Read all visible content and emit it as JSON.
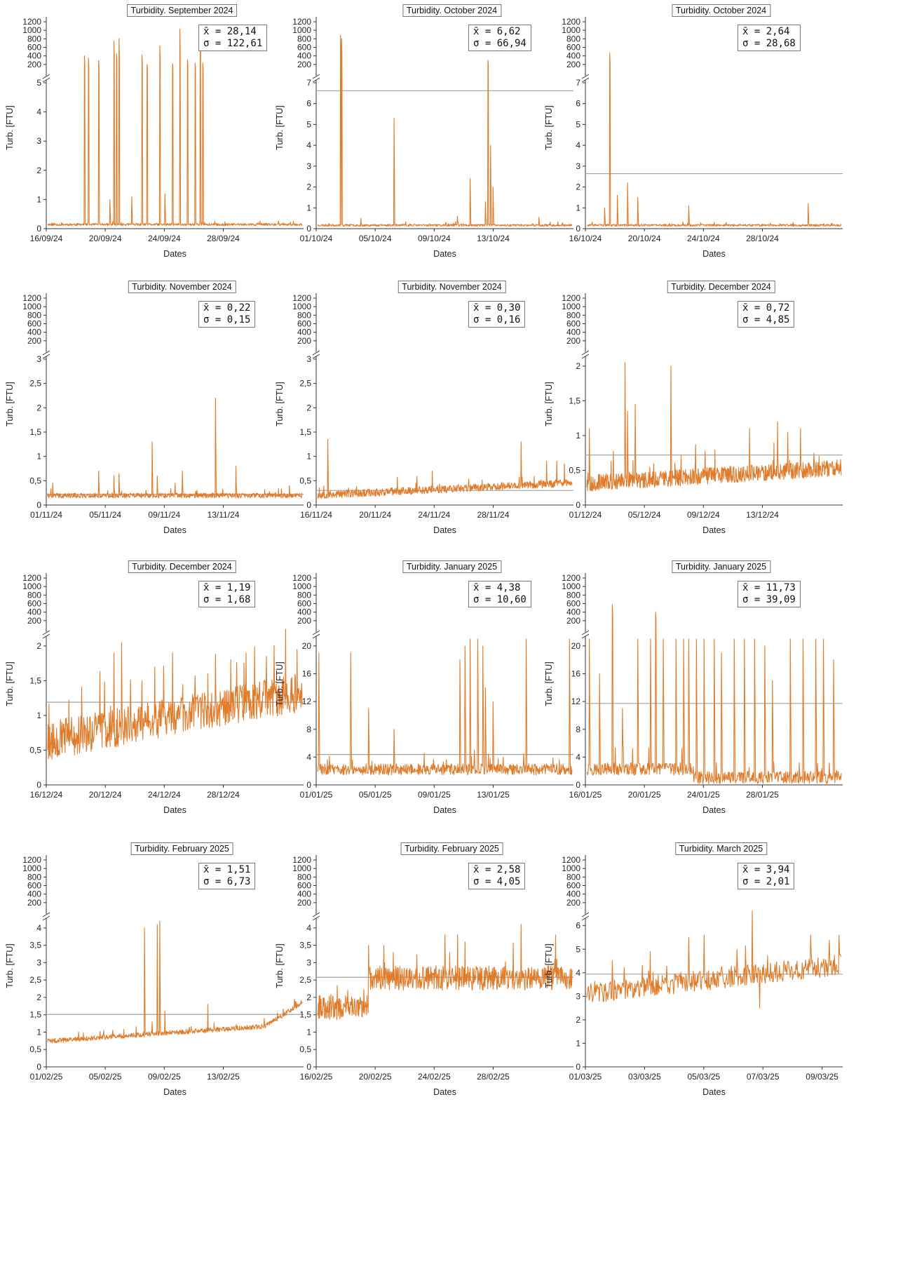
{
  "style": {
    "series_color": "#e07b2a",
    "mean_color": "#a0a0a0",
    "axis_color": "#333333"
  },
  "chart_data": [
    {
      "type": "line",
      "title": "Turbidity. September 2024",
      "xlabel": "Dates",
      "ylabel": "Turb. [FTU]",
      "x_ticks": [
        "16/09/24",
        "20/09/24",
        "24/09/24",
        "28/09/24"
      ],
      "upper_ticks": [
        "1200",
        "1000",
        "800",
        "600",
        "400",
        "200"
      ],
      "lower_ticks": [
        "0",
        "1",
        "2",
        "3",
        "4",
        "5"
      ],
      "ylim_upper": [
        0,
        1250
      ],
      "ylim_lower": [
        0,
        5
      ],
      "stats": {
        "mean_label": "x̄ = 28,14",
        "sd_label": "σ = 122,61"
      },
      "mean": 28.14,
      "mean_visible": false,
      "series": {
        "baseline": 0.13,
        "noise": 0.04,
        "n": 700,
        "seed": 11,
        "spikes": [
          [
            0.145,
            400
          ],
          [
            0.16,
            350
          ],
          [
            0.2,
            290
          ],
          [
            0.245,
            1.0
          ],
          [
            0.26,
            750
          ],
          [
            0.27,
            460
          ],
          [
            0.28,
            810
          ],
          [
            0.33,
            1.1
          ],
          [
            0.37,
            420
          ],
          [
            0.39,
            200
          ],
          [
            0.44,
            640
          ],
          [
            0.46,
            1.2
          ],
          [
            0.49,
            220
          ],
          [
            0.52,
            1030
          ],
          [
            0.55,
            310
          ],
          [
            0.58,
            230
          ],
          [
            0.6,
            1050
          ],
          [
            0.61,
            230
          ]
        ]
      }
    },
    {
      "type": "line",
      "title": "Turbidity. October 2024",
      "xlabel": "Dates",
      "ylabel": "Turb. [FTU]",
      "x_ticks": [
        "01/10/24",
        "05/10/24",
        "09/10/24",
        "13/10/24"
      ],
      "upper_ticks": [
        "1200",
        "1000",
        "800",
        "600",
        "400",
        "200"
      ],
      "lower_ticks": [
        "0",
        "1",
        "2",
        "3",
        "4",
        "5",
        "6",
        "7"
      ],
      "ylim_upper": [
        0,
        1250
      ],
      "ylim_lower": [
        0,
        7
      ],
      "stats": {
        "mean_label": "x̄ = 6,62",
        "sd_label": "σ = 66,94"
      },
      "mean": 6.62,
      "mean_visible": true,
      "series": {
        "baseline": 0.15,
        "noise": 0.05,
        "n": 700,
        "seed": 23,
        "spikes": [
          [
            0.09,
            880
          ],
          [
            0.095,
            800
          ],
          [
            0.17,
            0.5
          ],
          [
            0.3,
            5.3
          ],
          [
            0.55,
            0.6
          ],
          [
            0.6,
            2.4
          ],
          [
            0.66,
            1.3
          ],
          [
            0.67,
            300
          ],
          [
            0.68,
            4.0
          ],
          [
            0.69,
            2.0
          ],
          [
            0.87,
            0.55
          ]
        ]
      }
    },
    {
      "type": "line",
      "title": "Turbidity. October 2024",
      "xlabel": "Dates",
      "ylabel": "Turb. [FTU]",
      "x_ticks": [
        "16/10/24",
        "20/10/24",
        "24/10/24",
        "28/10/24"
      ],
      "upper_ticks": [
        "1200",
        "1000",
        "800",
        "600",
        "400",
        "200"
      ],
      "lower_ticks": [
        "0",
        "1",
        "2",
        "3",
        "4",
        "5",
        "6",
        "7"
      ],
      "ylim_upper": [
        0,
        1250
      ],
      "ylim_lower": [
        0,
        7
      ],
      "stats": {
        "mean_label": "x̄ = 2,64",
        "sd_label": "σ = 28,68"
      },
      "mean": 2.64,
      "mean_visible": true,
      "series": {
        "baseline": 0.15,
        "noise": 0.05,
        "n": 700,
        "seed": 37,
        "spikes": [
          [
            0.07,
            1.0
          ],
          [
            0.09,
            470
          ],
          [
            0.12,
            1.6
          ],
          [
            0.16,
            2.2
          ],
          [
            0.2,
            1.5
          ],
          [
            0.4,
            1.1
          ],
          [
            0.5,
            0.3
          ],
          [
            0.87,
            1.2
          ]
        ]
      }
    },
    {
      "type": "line",
      "title": "Turbidity. November 2024",
      "xlabel": "Dates",
      "ylabel": "Turb. [FTU]",
      "x_ticks": [
        "01/11/24",
        "05/11/24",
        "09/11/24",
        "13/11/24"
      ],
      "upper_ticks": [
        "1200",
        "1000",
        "800",
        "600",
        "400",
        "200"
      ],
      "lower_ticks": [
        "0",
        "0,5",
        "1",
        "1,5",
        "2",
        "2,5",
        "3"
      ],
      "ylim_upper": [
        0,
        1250
      ],
      "ylim_lower": [
        0,
        3
      ],
      "stats": {
        "mean_label": "x̄ = 0,22",
        "sd_label": "σ = 0,15"
      },
      "mean": 0.22,
      "mean_visible": true,
      "series": {
        "baseline": 0.18,
        "noise": 0.05,
        "n": 700,
        "seed": 41,
        "spikes": [
          [
            0.02,
            0.45
          ],
          [
            0.2,
            0.7
          ],
          [
            0.26,
            0.6
          ],
          [
            0.28,
            0.65
          ],
          [
            0.41,
            1.3
          ],
          [
            0.43,
            0.6
          ],
          [
            0.5,
            0.45
          ],
          [
            0.53,
            0.7
          ],
          [
            0.66,
            2.2
          ],
          [
            0.74,
            0.8
          ],
          [
            0.95,
            0.4
          ]
        ]
      }
    },
    {
      "type": "line",
      "title": "Turbidity. November 2024",
      "xlabel": "Dates",
      "ylabel": "Turb. [FTU]",
      "x_ticks": [
        "16/11/24",
        "20/11/24",
        "24/11/24",
        "28/11/24"
      ],
      "upper_ticks": [
        "1200",
        "1000",
        "800",
        "600",
        "400",
        "200"
      ],
      "lower_ticks": [
        "0",
        "0,5",
        "1",
        "1,5",
        "2",
        "2,5",
        "3"
      ],
      "ylim_upper": [
        0,
        1250
      ],
      "ylim_lower": [
        0,
        3
      ],
      "stats": {
        "mean_label": "x̄ = 0,30",
        "sd_label": "σ = 0,16"
      },
      "mean": 0.3,
      "mean_visible": true,
      "series": {
        "baseline": 0.18,
        "trend": 0.25,
        "noise": 0.08,
        "n": 700,
        "seed": 53,
        "spikes": [
          [
            0.04,
            1.35
          ],
          [
            0.45,
            0.7
          ],
          [
            0.8,
            1.3
          ],
          [
            0.9,
            0.9
          ],
          [
            0.94,
            0.9
          ],
          [
            0.97,
            0.85
          ]
        ]
      }
    },
    {
      "type": "line",
      "title": "Turbidity. December 2024",
      "xlabel": "Dates",
      "ylabel": "Turb. [FTU]",
      "x_ticks": [
        "01/12/24",
        "05/12/24",
        "09/12/24",
        "13/12/24"
      ],
      "upper_ticks": [
        "1200",
        "1000",
        "800",
        "600",
        "400",
        "200"
      ],
      "lower_ticks": [
        "0",
        "0,5",
        "1",
        "1,5",
        "2"
      ],
      "ylim_upper": [
        0,
        1250
      ],
      "ylim_lower": [
        0,
        2.1
      ],
      "stats": {
        "mean_label": "x̄ = 0,72",
        "sd_label": "σ = 4,85"
      },
      "mean": 0.72,
      "mean_visible": true,
      "series": {
        "baseline": 0.28,
        "trend": 0.22,
        "noise": 0.12,
        "n": 700,
        "seed": 67,
        "spikes": [
          [
            0.01,
            1.1
          ],
          [
            0.15,
            2.05
          ],
          [
            0.16,
            1.35
          ],
          [
            0.19,
            1.45
          ],
          [
            0.33,
            2.0
          ],
          [
            0.64,
            1.1
          ],
          [
            0.75,
            1.2
          ],
          [
            0.79,
            1.05
          ],
          [
            0.84,
            1.1
          ]
        ]
      }
    },
    {
      "type": "line",
      "title": "Turbidity. December 2024",
      "xlabel": "Dates",
      "ylabel": "Turb. [FTU]",
      "x_ticks": [
        "16/12/24",
        "20/12/24",
        "24/12/24",
        "28/12/24"
      ],
      "upper_ticks": [
        "1200",
        "1000",
        "800",
        "600",
        "400",
        "200"
      ],
      "lower_ticks": [
        "0",
        "0,5",
        "1",
        "1,5",
        "2"
      ],
      "ylim_upper": [
        0,
        1250
      ],
      "ylim_lower": [
        0,
        2.1
      ],
      "stats": {
        "mean_label": "x̄ = 1,19",
        "sd_label": "σ = 1,68"
      },
      "mean": 1.19,
      "mean_visible": true,
      "series": {
        "baseline": 0.55,
        "trend": 0.7,
        "noise": 0.28,
        "n": 600,
        "seed": 79,
        "spikes": [
          [
            0.26,
            1.9
          ],
          [
            0.29,
            2.05
          ],
          [
            0.37,
            1.5
          ],
          [
            0.42,
            1.7
          ],
          [
            0.49,
            1.9
          ],
          [
            0.63,
            1.6
          ],
          [
            0.72,
            1.8
          ],
          [
            0.78,
            1.9
          ],
          [
            0.86,
            1.85
          ],
          [
            0.98,
            1.95
          ]
        ]
      }
    },
    {
      "type": "line",
      "title": "Turbidity. January 2025",
      "xlabel": "Dates",
      "ylabel": "Turb. [FTU]",
      "x_ticks": [
        "01/01/25",
        "05/01/25",
        "09/01/25",
        "13/01/25"
      ],
      "upper_ticks": [
        "1200",
        "1000",
        "800",
        "600",
        "400",
        "200"
      ],
      "lower_ticks": [
        "0",
        "4",
        "8",
        "12",
        "16",
        "20"
      ],
      "ylim_upper": [
        0,
        1250
      ],
      "ylim_lower": [
        0,
        21
      ],
      "stats": {
        "mean_label": "x̄ = 4,38",
        "sd_label": "σ = 10,60"
      },
      "mean": 4.38,
      "mean_visible": true,
      "series": {
        "baseline": 2.0,
        "noise": 0.8,
        "n": 600,
        "seed": 83,
        "spikes": [
          [
            0.005,
            19
          ],
          [
            0.13,
            19
          ],
          [
            0.2,
            11
          ],
          [
            0.3,
            8
          ],
          [
            0.56,
            18
          ],
          [
            0.58,
            20
          ],
          [
            0.6,
            21
          ],
          [
            0.63,
            21
          ],
          [
            0.65,
            20
          ],
          [
            0.66,
            14
          ],
          [
            0.69,
            12
          ],
          [
            0.82,
            21
          ],
          [
            0.99,
            21
          ]
        ]
      }
    },
    {
      "type": "line",
      "title": "Turbidity. January 2025",
      "xlabel": "Dates",
      "ylabel": "Turb. [FTU]",
      "x_ticks": [
        "16/01/25",
        "20/01/25",
        "24/01/25",
        "28/01/25"
      ],
      "upper_ticks": [
        "1200",
        "1000",
        "800",
        "600",
        "400",
        "200"
      ],
      "lower_ticks": [
        "0",
        "4",
        "8",
        "12",
        "16",
        "20"
      ],
      "ylim_upper": [
        0,
        1250
      ],
      "ylim_lower": [
        0,
        21
      ],
      "stats": {
        "mean_label": "x̄ = 11,73",
        "sd_label": "σ = 39,09"
      },
      "mean": 11.73,
      "mean_visible": true,
      "series": {
        "baseline": 2.0,
        "step_at": 0.42,
        "after_level": 0.8,
        "noise": 0.9,
        "n": 600,
        "seed": 97,
        "spikes": [
          [
            0.01,
            21
          ],
          [
            0.05,
            16
          ],
          [
            0.1,
            580
          ],
          [
            0.14,
            11
          ],
          [
            0.2,
            21
          ],
          [
            0.25,
            21
          ],
          [
            0.27,
            400
          ],
          [
            0.3,
            21
          ],
          [
            0.35,
            21
          ],
          [
            0.38,
            21
          ],
          [
            0.4,
            21
          ],
          [
            0.43,
            21
          ],
          [
            0.46,
            21
          ],
          [
            0.5,
            21
          ],
          [
            0.53,
            19
          ],
          [
            0.58,
            21
          ],
          [
            0.62,
            21
          ],
          [
            0.66,
            21
          ],
          [
            0.7,
            20
          ],
          [
            0.73,
            15
          ],
          [
            0.8,
            21
          ],
          [
            0.85,
            21
          ],
          [
            0.9,
            21
          ],
          [
            0.93,
            21
          ],
          [
            0.97,
            18
          ]
        ]
      }
    },
    {
      "type": "line",
      "title": "Turbidity. February 2025",
      "xlabel": "Dates",
      "ylabel": "Turb. [FTU]",
      "x_ticks": [
        "01/02/25",
        "05/02/25",
        "09/02/25",
        "13/02/25"
      ],
      "upper_ticks": [
        "1200",
        "1000",
        "800",
        "600",
        "400",
        "200"
      ],
      "lower_ticks": [
        "0",
        "0,5",
        "1",
        "1,5",
        "2",
        "2,5",
        "3",
        "3,5",
        "4"
      ],
      "ylim_upper": [
        0,
        1250
      ],
      "ylim_lower": [
        0,
        4.2
      ],
      "stats": {
        "mean_label": "x̄ = 1,51",
        "sd_label": "σ = 6,73"
      },
      "mean": 1.51,
      "mean_visible": true,
      "series": {
        "baseline": 0.72,
        "trend": 0.5,
        "end_rise": 0.6,
        "noise": 0.07,
        "n": 700,
        "seed": 101,
        "spikes": [
          [
            0.38,
            4.0
          ],
          [
            0.41,
            1.3
          ],
          [
            0.43,
            4.1
          ],
          [
            0.44,
            4.2
          ],
          [
            0.46,
            1.6
          ],
          [
            0.63,
            1.8
          ],
          [
            0.97,
            1.95
          ]
        ]
      }
    },
    {
      "type": "line",
      "title": "Turbidity. February 2025",
      "xlabel": "Dates",
      "ylabel": "Turb. [FTU]",
      "x_ticks": [
        "16/02/25",
        "20/02/25",
        "24/02/25",
        "28/02/25"
      ],
      "upper_ticks": [
        "1200",
        "1000",
        "800",
        "600",
        "400",
        "200"
      ],
      "lower_ticks": [
        "0",
        "0,5",
        "1",
        "1,5",
        "2",
        "2,5",
        "3",
        "3,5",
        "4"
      ],
      "ylim_upper": [
        0,
        1250
      ],
      "ylim_lower": [
        0,
        4.2
      ],
      "stats": {
        "mean_label": "x̄ = 2,58",
        "sd_label": "σ = 4,05"
      },
      "mean": 2.58,
      "mean_visible": true,
      "series": {
        "baseline": 1.6,
        "step_at": 0.2,
        "after_level": 2.45,
        "noise": 0.35,
        "n": 650,
        "seed": 113,
        "spikes": [
          [
            0.2,
            3.5
          ],
          [
            0.26,
            3.5
          ],
          [
            0.5,
            3.8
          ],
          [
            0.55,
            3.8
          ],
          [
            0.58,
            3.6
          ],
          [
            0.8,
            4.1
          ],
          [
            0.94,
            3.1
          ]
        ]
      }
    },
    {
      "type": "line",
      "title": "Turbidity. March 2025",
      "xlabel": "Dates",
      "ylabel": "Turb. [FTU]",
      "x_ticks": [
        "01/03/25",
        "03/03/25",
        "05/03/25",
        "07/03/25",
        "09/03/25"
      ],
      "upper_ticks": [
        "1200",
        "1000",
        "800",
        "600",
        "400",
        "200"
      ],
      "lower_ticks": [
        "0",
        "1",
        "2",
        "3",
        "4",
        "5",
        "6"
      ],
      "ylim_upper": [
        0,
        1250
      ],
      "ylim_lower": [
        0,
        6.2
      ],
      "stats": {
        "mean_label": "x̄ = 3,94",
        "sd_label": "σ = 2,01"
      },
      "mean": 3.94,
      "mean_visible": true,
      "series": {
        "baseline": 3.0,
        "trend": 1.2,
        "noise": 0.45,
        "n": 450,
        "seed": 131,
        "spikes": [
          [
            0.1,
            4.5
          ],
          [
            0.25,
            4.9
          ],
          [
            0.4,
            5.5
          ],
          [
            0.46,
            5.6
          ],
          [
            0.65,
            6.5
          ],
          [
            0.68,
            2.5
          ],
          [
            0.88,
            5.6
          ],
          [
            0.99,
            5.6
          ]
        ]
      }
    }
  ]
}
